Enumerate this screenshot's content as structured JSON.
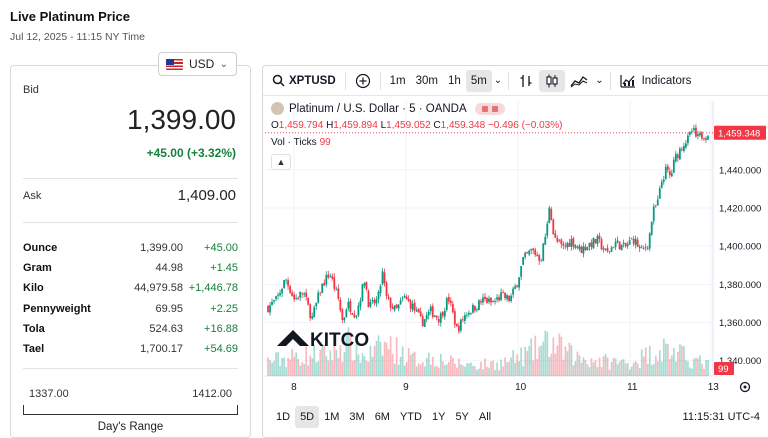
{
  "page": {
    "title": "Live Platinum Price",
    "timestamp": "Jul 12, 2025 - 11:15 NY Time"
  },
  "quote": {
    "currency": "USD",
    "bid_label": "Bid",
    "bid": "1,399.00",
    "bid_change": "+45.00 (+3.32%)",
    "ask_label": "Ask",
    "ask": "1,409.00",
    "units": [
      {
        "name": "Ounce",
        "price": "1,399.00",
        "change": "+45.00"
      },
      {
        "name": "Gram",
        "price": "44.98",
        "change": "+1.45"
      },
      {
        "name": "Kilo",
        "price": "44,979.58",
        "change": "+1,446.78"
      },
      {
        "name": "Pennyweight",
        "price": "69.95",
        "change": "+2.25"
      },
      {
        "name": "Tola",
        "price": "524.63",
        "change": "+16.88"
      },
      {
        "name": "Tael",
        "price": "1,700.17",
        "change": "+54.69"
      }
    ],
    "day_range": {
      "low": "1337.00",
      "high": "1412.00",
      "label": "Day's Range"
    }
  },
  "toolbar": {
    "symbol": "XPTUSD",
    "intervals": [
      "1m",
      "30m",
      "1h",
      "5m"
    ],
    "active_interval": "5m",
    "indicators_label": "Indicators"
  },
  "legend": {
    "title": "Platinum / U.S. Dollar · 5 · OANDA",
    "ohlc": {
      "o_key": "O",
      "o": "1,459.794",
      "h_key": "H",
      "h": "1,459.894",
      "l_key": "L",
      "l": "1,459.052",
      "c_key": "C",
      "c": "1,459.348",
      "change": "−0.496 (−0.03%)"
    },
    "volume_label": "Vol · Ticks",
    "volume_value": "99"
  },
  "chart_data": {
    "type": "candlestick",
    "symbol": "XPTUSD",
    "x_ticks": [
      "8",
      "9",
      "10",
      "11",
      "13"
    ],
    "y_ticks": [
      "1,440.000",
      "1,420.000",
      "1,400.000",
      "1,380.000",
      "1,360.000",
      "1,340.000"
    ],
    "ylim": [
      1332,
      1476
    ],
    "last_price": "1,459.348",
    "last_volume": "99",
    "watermark": "KITCO",
    "path": [
      [
        0,
        1368
      ],
      [
        0.02,
        1372
      ],
      [
        0.04,
        1383
      ],
      [
        0.06,
        1372
      ],
      [
        0.08,
        1376
      ],
      [
        0.1,
        1362
      ],
      [
        0.12,
        1378
      ],
      [
        0.14,
        1386
      ],
      [
        0.16,
        1372
      ],
      [
        0.17,
        1360
      ],
      [
        0.18,
        1370
      ],
      [
        0.2,
        1364
      ],
      [
        0.22,
        1383
      ],
      [
        0.23,
        1368
      ],
      [
        0.25,
        1372
      ],
      [
        0.26,
        1386
      ],
      [
        0.27,
        1372
      ],
      [
        0.29,
        1366
      ],
      [
        0.31,
        1373
      ],
      [
        0.33,
        1368
      ],
      [
        0.35,
        1360
      ],
      [
        0.37,
        1366
      ],
      [
        0.39,
        1362
      ],
      [
        0.41,
        1373
      ],
      [
        0.43,
        1356
      ],
      [
        0.45,
        1365
      ],
      [
        0.47,
        1368
      ],
      [
        0.49,
        1372
      ],
      [
        0.51,
        1370
      ],
      [
        0.53,
        1374
      ],
      [
        0.55,
        1372
      ],
      [
        0.565,
        1380
      ],
      [
        0.58,
        1393
      ],
      [
        0.6,
        1398
      ],
      [
        0.62,
        1393
      ],
      [
        0.635,
        1411
      ],
      [
        0.64,
        1423
      ],
      [
        0.65,
        1404
      ],
      [
        0.67,
        1399
      ],
      [
        0.69,
        1403
      ],
      [
        0.71,
        1398
      ],
      [
        0.73,
        1401
      ],
      [
        0.75,
        1403
      ],
      [
        0.77,
        1396
      ],
      [
        0.79,
        1402
      ],
      [
        0.81,
        1399
      ],
      [
        0.83,
        1404
      ],
      [
        0.85,
        1397
      ],
      [
        0.865,
        1402
      ],
      [
        0.875,
        1418
      ],
      [
        0.885,
        1422
      ],
      [
        0.895,
        1434
      ],
      [
        0.905,
        1440
      ],
      [
        0.915,
        1436
      ],
      [
        0.925,
        1446
      ],
      [
        0.935,
        1450
      ],
      [
        0.945,
        1454
      ],
      [
        0.955,
        1456
      ],
      [
        0.965,
        1461
      ],
      [
        0.975,
        1456
      ],
      [
        0.985,
        1458
      ],
      [
        1.0,
        1459
      ]
    ],
    "volume_profile": [
      [
        0,
        0.4
      ],
      [
        0.08,
        0.55
      ],
      [
        0.14,
        0.6
      ],
      [
        0.18,
        0.9
      ],
      [
        0.22,
        0.5
      ],
      [
        0.27,
        0.85
      ],
      [
        0.33,
        0.45
      ],
      [
        0.38,
        0.5
      ],
      [
        0.42,
        0.35
      ],
      [
        0.48,
        0.3
      ],
      [
        0.53,
        0.35
      ],
      [
        0.58,
        0.55
      ],
      [
        0.64,
        0.9
      ],
      [
        0.7,
        0.5
      ],
      [
        0.76,
        0.4
      ],
      [
        0.82,
        0.35
      ],
      [
        0.86,
        0.55
      ],
      [
        0.9,
        0.75
      ],
      [
        0.95,
        0.5
      ],
      [
        1.0,
        0.3
      ]
    ]
  },
  "range_buttons": [
    "1D",
    "5D",
    "1M",
    "3M",
    "6M",
    "YTD",
    "1Y",
    "5Y",
    "All"
  ],
  "active_range": "5D",
  "clock": "11:15:31 UTC-4",
  "colors": {
    "up": "#089981",
    "down": "#f23645",
    "positive_text": "#17803d"
  }
}
